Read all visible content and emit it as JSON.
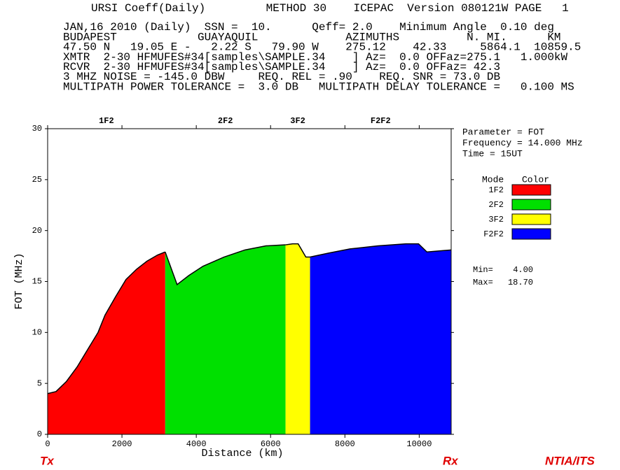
{
  "header": {
    "lines": [
      "URSI Coeff(Daily)         METHOD 30    ICEPAC  Version 080121W PAGE   1",
      "JAN,16 2010 (Daily)  SSN =  10.      Qeff= 2.0    Minimum Angle  0.10 deg",
      "BUDAPEST            GUAYAQUIL             AZIMUTHS          N. MI.      KM",
      "47.50 N   19.05 E -   2.22 S   79.90 W    275.12    42.33     5864.1  10859.5",
      "XMTR  2-30 HFMUFES#34[samples\\SAMPLE.34    ] Az=  0.0 OFFaz=275.1   1.000kW",
      "RCVR  2-30 HFMUFES#34[samples\\SAMPLE.34    ] Az=  0.0 OFFaz= 42.3",
      "3 MHZ NOISE = -145.0 DBW     REQ. REL = .90    REQ. SNR = 73.0 DB",
      "MULTIPATH POWER TOLERANCE =  3.0 DB   MULTIPATH DELAY TOLERANCE =   0.100 MS"
    ]
  },
  "chart_data": {
    "type": "area",
    "x_label": "Distance (km)",
    "y_label": "FOT (MHz)",
    "xlim": [
      0,
      10859.5
    ],
    "xticks": [
      0,
      2000,
      4000,
      6000,
      8000,
      10000
    ],
    "ylim": [
      0,
      30
    ],
    "yticks": [
      0,
      5,
      10,
      15,
      20,
      25,
      30
    ],
    "series": [
      {
        "name": "1F2",
        "color": "#ff0000",
        "x": [
          0,
          226,
          508,
          791,
          1073,
          1356,
          1544,
          1827,
          2109,
          2392,
          2674,
          2957,
          3164
        ],
        "values": [
          4.0,
          4.2,
          5.2,
          6.6,
          8.3,
          10.0,
          11.7,
          13.5,
          15.2,
          16.2,
          17.0,
          17.6,
          17.9
        ]
      },
      {
        "name": "2F2",
        "color": "#00e000",
        "x": [
          3164,
          3484,
          3804,
          4181,
          4746,
          5311,
          5876,
          6403
        ],
        "values": [
          17.9,
          14.7,
          15.6,
          16.5,
          17.4,
          18.1,
          18.5,
          18.6
        ]
      },
      {
        "name": "3F2",
        "color": "#ffff00",
        "x": [
          6403,
          6591,
          6742,
          6949,
          7062
        ],
        "values": [
          18.6,
          18.7,
          18.7,
          17.4,
          17.4
        ]
      },
      {
        "name": "F2F2",
        "color": "#0000ff",
        "x": [
          7062,
          7571,
          8136,
          8889,
          9642,
          9981,
          10207,
          10859.5
        ],
        "values": [
          17.4,
          17.8,
          18.2,
          18.5,
          18.7,
          18.7,
          17.9,
          18.1
        ]
      }
    ],
    "info": [
      "Parameter = FOT",
      "Frequency = 14.000 MHz",
      "Time = 15UT"
    ],
    "legend_headers": [
      "Mode",
      "Color"
    ],
    "stats": [
      {
        "name": "Min=",
        "value": 4.0,
        "value_label": "4.00"
      },
      {
        "name": "Max=",
        "value": 18.7,
        "value_label": "18.70"
      }
    ],
    "footer": {
      "left": "Tx",
      "middle": "Rx",
      "right": "NTIA/ITS"
    }
  }
}
